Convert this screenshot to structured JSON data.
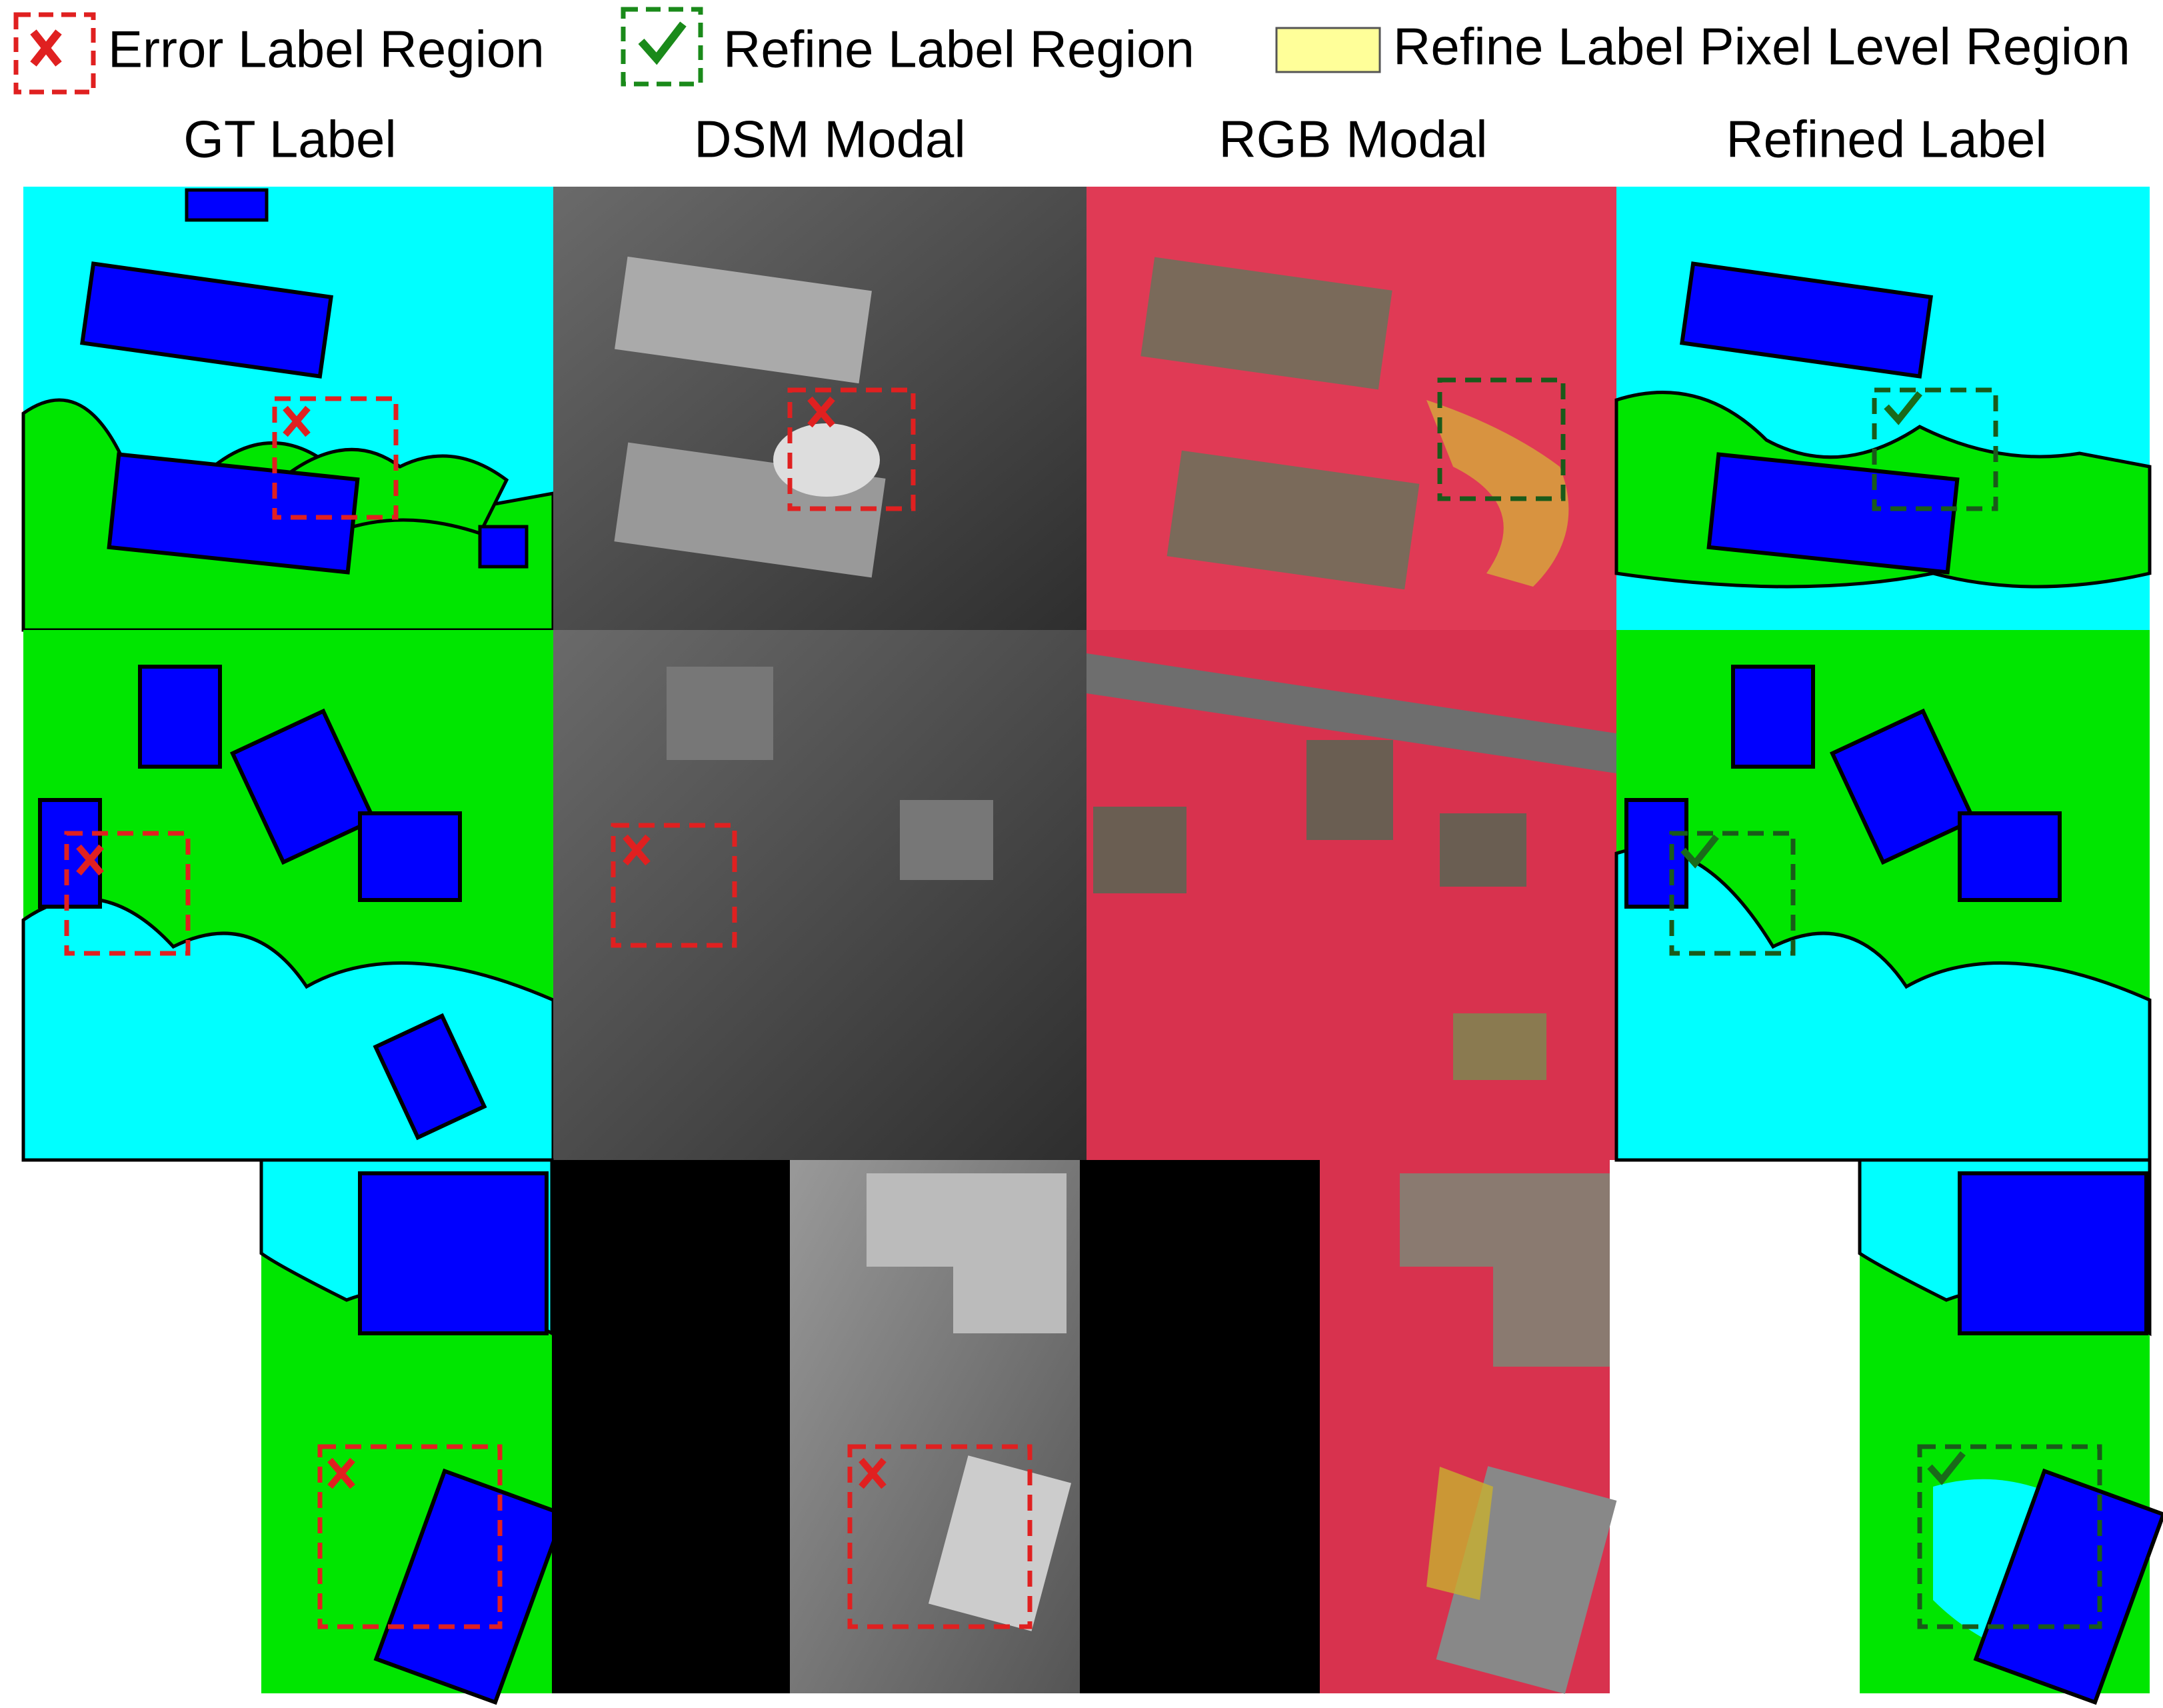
{
  "legend": {
    "items": [
      {
        "label": "Error Label Region"
      },
      {
        "label": "Refine Label Region"
      },
      {
        "label": "Refine Label Pixel Level Region"
      }
    ]
  },
  "columns": [
    "GT Label",
    "DSM Modal",
    "RGB Modal",
    "Refined Label"
  ]
}
